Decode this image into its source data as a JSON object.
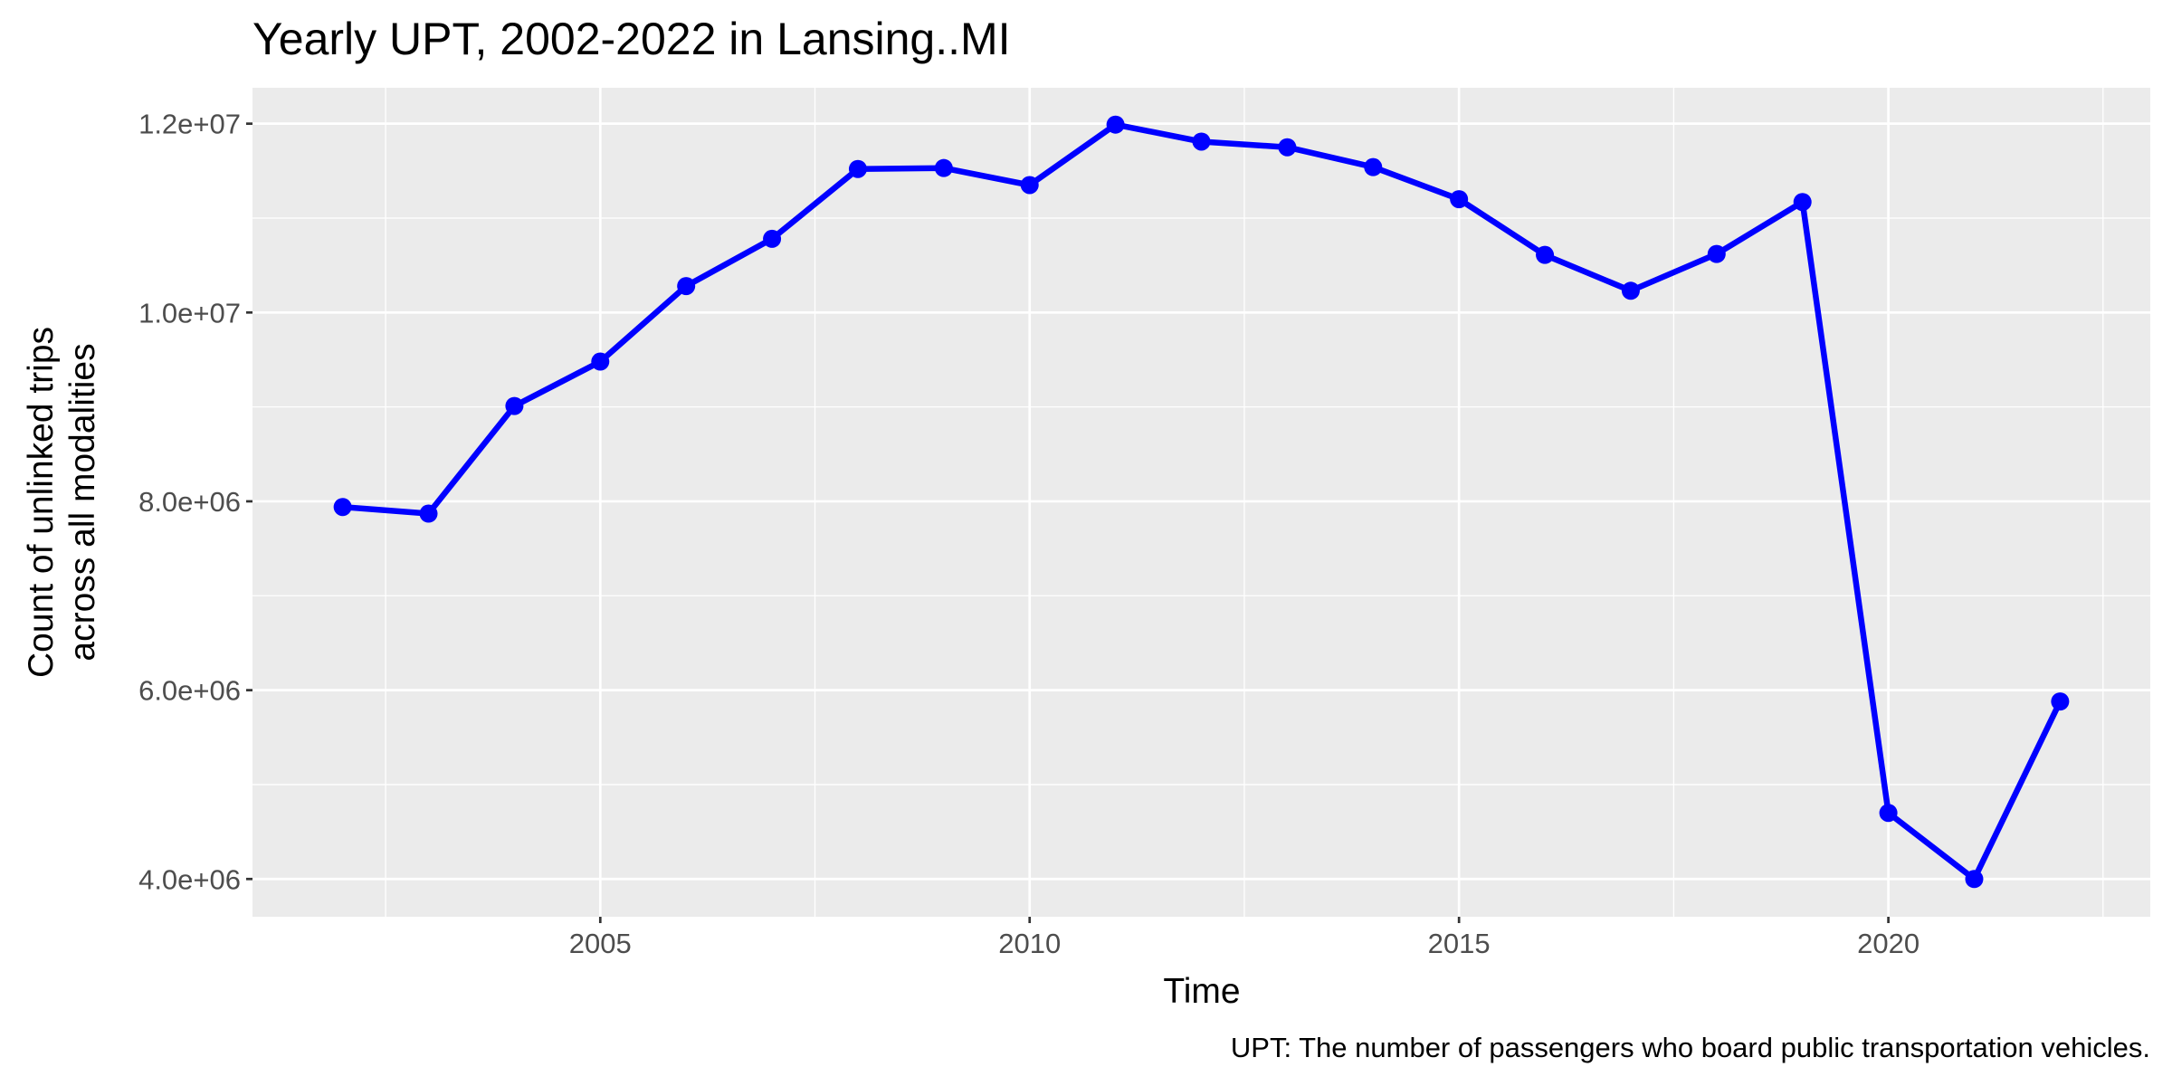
{
  "chart_data": {
    "type": "line",
    "title": "Yearly UPT, 2002-2022 in Lansing..MI",
    "xlabel": "Time",
    "ylabel_lines": [
      "Count of unlinked trips",
      "across all modalities"
    ],
    "caption": "UPT: The number of passengers who board public transportation vehicles.",
    "x_ticks": [
      2005,
      2010,
      2015,
      2020
    ],
    "y_ticks": [
      4000000,
      6000000,
      8000000,
      10000000,
      12000000
    ],
    "y_tick_labels": [
      "4.0e+06",
      "6.0e+06",
      "8.0e+06",
      "1.0e+07",
      "1.2e+07"
    ],
    "xlim": [
      2000.95,
      2023.05
    ],
    "ylim": [
      3600000,
      12380000
    ],
    "grid": true,
    "line_color": "#0000ff",
    "panel_color": "#ebebeb",
    "series": [
      {
        "x": [
          2002,
          2003,
          2004,
          2005,
          2006,
          2007,
          2008,
          2009,
          2010,
          2011,
          2012,
          2013,
          2014,
          2015,
          2016,
          2017,
          2018,
          2019,
          2020,
          2021,
          2022
        ],
        "values": [
          7940000,
          7870000,
          9010000,
          9480000,
          10280000,
          10780000,
          11520000,
          11530000,
          11350000,
          11990000,
          11810000,
          11750000,
          11540000,
          11200000,
          10610000,
          10230000,
          10620000,
          11170000,
          4700000,
          4000000,
          5880000
        ]
      }
    ]
  }
}
